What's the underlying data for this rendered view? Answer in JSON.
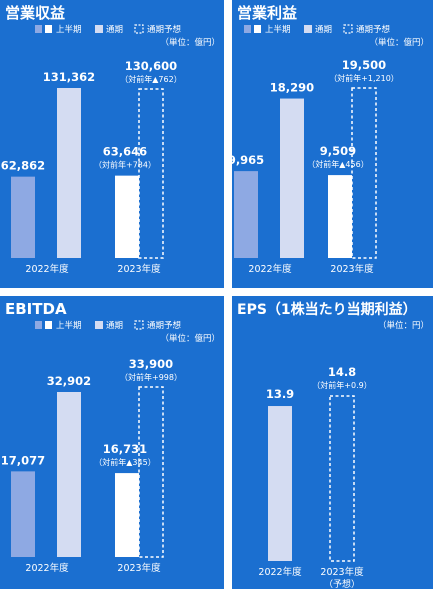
{
  "colors": {
    "panel_bg": "#1b6fd0",
    "first_half": "#8ea9e3",
    "full_year": "#d4dcf2",
    "forecast_bar": "#ffffff",
    "forecast_outline": "#ffffff",
    "text": "#ffffff"
  },
  "legend": {
    "first_half": "上半期",
    "full_year": "通期",
    "forecast": "通期予想"
  },
  "chart_data": [
    {
      "type": "bar",
      "title": "営業収益",
      "unit": "（単位：億円）",
      "categories": [
        "2022年度",
        "2023年度"
      ],
      "series": [
        {
          "name": "上半期",
          "values": [
            62862,
            63646
          ]
        },
        {
          "name": "通期",
          "values": [
            131362,
            null
          ]
        },
        {
          "name": "通期予想",
          "values": [
            null,
            130600
          ]
        }
      ],
      "value_labels": {
        "first_half": [
          "62,862",
          "63,646"
        ],
        "full_year": [
          "131,362",
          null
        ],
        "forecast": [
          null,
          "130,600"
        ]
      },
      "notes": {
        "first_half": [
          null,
          "（対前年+784）"
        ],
        "forecast": [
          null,
          "（対前年▲762）"
        ]
      }
    },
    {
      "type": "bar",
      "title": "営業利益",
      "unit": "（単位：億円）",
      "categories": [
        "2022年度",
        "2023年度"
      ],
      "series": [
        {
          "name": "上半期",
          "values": [
            9965,
            9509
          ]
        },
        {
          "name": "通期",
          "values": [
            18290,
            null
          ]
        },
        {
          "name": "通期予想",
          "values": [
            null,
            19500
          ]
        }
      ],
      "value_labels": {
        "first_half": [
          "9,965",
          "9,509"
        ],
        "full_year": [
          "18,290",
          null
        ],
        "forecast": [
          null,
          "19,500"
        ]
      },
      "notes": {
        "first_half": [
          null,
          "（対前年▲456）"
        ],
        "forecast": [
          null,
          "（対前年+1,210）"
        ]
      }
    },
    {
      "type": "bar",
      "title": "EBITDA",
      "unit": "（単位：億円）",
      "categories": [
        "2022年度",
        "2023年度"
      ],
      "series": [
        {
          "name": "上半期",
          "values": [
            17077,
            16731
          ]
        },
        {
          "name": "通期",
          "values": [
            32902,
            null
          ]
        },
        {
          "name": "通期予想",
          "values": [
            null,
            33900
          ]
        }
      ],
      "value_labels": {
        "first_half": [
          "17,077",
          "16,731"
        ],
        "full_year": [
          "32,902",
          null
        ],
        "forecast": [
          null,
          "33,900"
        ]
      },
      "notes": {
        "first_half": [
          null,
          "（対前年▲345）"
        ],
        "forecast": [
          null,
          "（対前年+998）"
        ]
      }
    },
    {
      "type": "bar",
      "title": "EPS（1株当たり当期利益）",
      "unit": "（単位：円）",
      "categories": [
        "2022年度",
        "2023年度"
      ],
      "category_sublabels": [
        "",
        "（予想）"
      ],
      "series": [
        {
          "name": "通期",
          "values": [
            13.9,
            null
          ]
        },
        {
          "name": "通期予想",
          "values": [
            null,
            14.8
          ]
        }
      ],
      "value_labels": {
        "full_year": [
          "13.9",
          null
        ],
        "forecast": [
          null,
          "14.8"
        ]
      },
      "notes": {
        "forecast": [
          null,
          "（対前年+0.9）"
        ]
      }
    }
  ]
}
